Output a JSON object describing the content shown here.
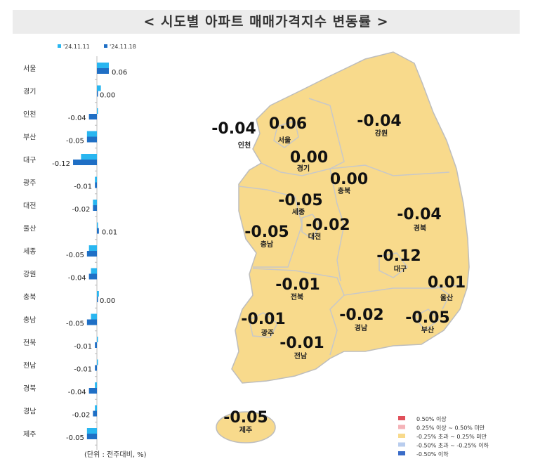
{
  "title": "< 시도별 아파트 매매가격지수 변동률 >",
  "chart_data": {
    "type": "bar",
    "orientation": "horizontal",
    "title": "시도별 아파트 매매가격지수 변동률",
    "unit_note": "(단위 : 전주대비, %)",
    "categories": [
      "서울",
      "경기",
      "인천",
      "부산",
      "대구",
      "광주",
      "대전",
      "울산",
      "세종",
      "강원",
      "충북",
      "충남",
      "전북",
      "전남",
      "경북",
      "경남",
      "제주"
    ],
    "series": [
      {
        "name": "'24.11.11",
        "color": "#29b6f0",
        "values": [
          0.06,
          0.02,
          0.0,
          -0.05,
          -0.08,
          -0.01,
          -0.02,
          0.0,
          -0.04,
          -0.03,
          0.01,
          -0.03,
          0.0,
          0.0,
          -0.01,
          -0.01,
          -0.05
        ]
      },
      {
        "name": "'24.11.18",
        "color": "#1f6fc5",
        "values": [
          0.06,
          0.0,
          -0.04,
          -0.05,
          -0.12,
          -0.01,
          -0.02,
          0.01,
          -0.05,
          -0.04,
          0.0,
          -0.05,
          -0.01,
          -0.01,
          -0.04,
          -0.02,
          -0.05
        ]
      }
    ],
    "data_labels": [
      "0.06",
      "0.00",
      "-0.04",
      "-0.05",
      "-0.12",
      "-0.01",
      "-0.02",
      "0.01",
      "-0.05",
      "-0.04",
      "0.00",
      "-0.05",
      "-0.01",
      "-0.01",
      "-0.04",
      "-0.02",
      "-0.05"
    ],
    "legend_position": "top"
  },
  "map": {
    "fill": "#f8da8c",
    "regions": [
      {
        "name": "서울",
        "value": "0.06"
      },
      {
        "name": "인천",
        "value": "-0.04"
      },
      {
        "name": "경기",
        "value": "0.00"
      },
      {
        "name": "강원",
        "value": "-0.04"
      },
      {
        "name": "충북",
        "value": "0.00"
      },
      {
        "name": "세종",
        "value": "-0.05"
      },
      {
        "name": "대전",
        "value": "-0.02"
      },
      {
        "name": "충남",
        "value": "-0.05"
      },
      {
        "name": "경북",
        "value": "-0.04"
      },
      {
        "name": "대구",
        "value": "-0.12"
      },
      {
        "name": "울산",
        "value": "0.01"
      },
      {
        "name": "전북",
        "value": "-0.01"
      },
      {
        "name": "광주",
        "value": "-0.01"
      },
      {
        "name": "경남",
        "value": "-0.02"
      },
      {
        "name": "부산",
        "value": "-0.05"
      },
      {
        "name": "전남",
        "value": "-0.01"
      },
      {
        "name": "제주",
        "value": "-0.05"
      }
    ],
    "legend": [
      {
        "label": "0.50% 이상",
        "color": "#e0505a"
      },
      {
        "label": "0.25% 이상 ~ 0.50% 미만",
        "color": "#f4b3b8"
      },
      {
        "label": "-0.25% 초과 ~ 0.25% 미만",
        "color": "#f8da8c"
      },
      {
        "label": "-0.50% 초과 ~ -0.25% 이하",
        "color": "#b9cdee"
      },
      {
        "label": "-0.50% 이하",
        "color": "#3a6cc8"
      }
    ]
  }
}
